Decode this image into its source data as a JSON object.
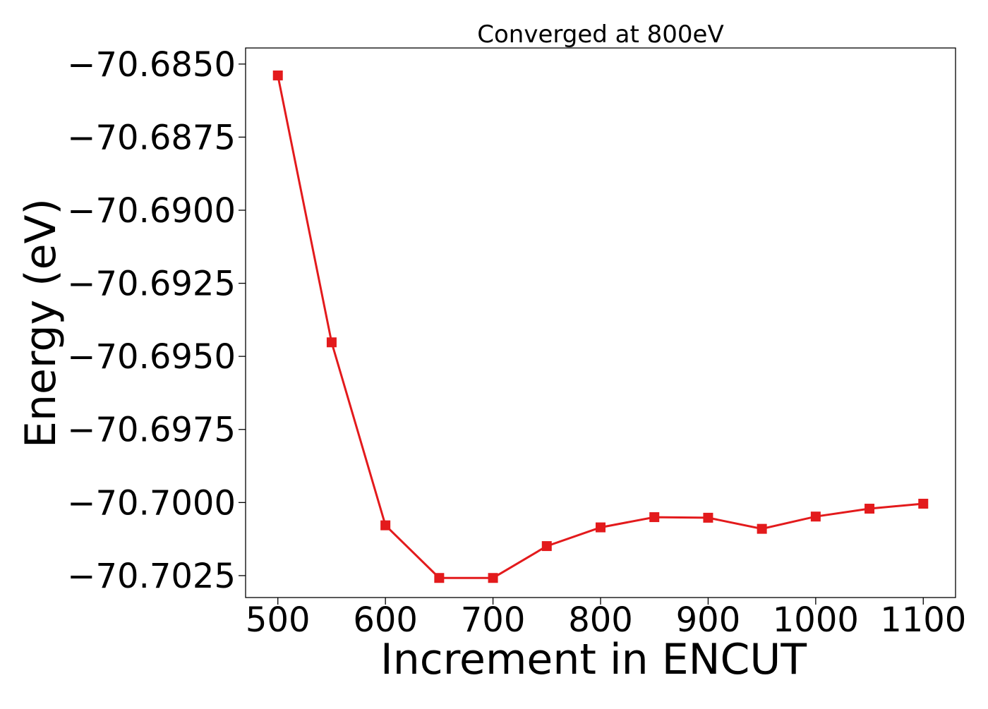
{
  "chart_data": {
    "type": "line",
    "title": "Converged at 800eV",
    "xlabel": "Increment in ENCUT",
    "ylabel": "Energy (eV)",
    "x_ticks": [
      500,
      600,
      700,
      800,
      900,
      1000,
      1100
    ],
    "y_ticks": [
      -70.685,
      -70.6875,
      -70.69,
      -70.6925,
      -70.695,
      -70.6975,
      -70.7,
      -70.7025
    ],
    "y_tick_labels": [
      "−70.6850",
      "−70.6875",
      "−70.6900",
      "−70.6925",
      "−70.6950",
      "−70.6975",
      "−70.7000",
      "−70.7025"
    ],
    "xlim": [
      470,
      1130
    ],
    "ylim": [
      -70.70325,
      -70.68445
    ],
    "grid": false,
    "series": [
      {
        "color": "#e31a1c",
        "marker": "square",
        "x": [
          500,
          550,
          600,
          650,
          700,
          750,
          800,
          850,
          900,
          950,
          1000,
          1050,
          1100
        ],
        "y": [
          -70.68539,
          -70.69452,
          -70.70078,
          -70.70258,
          -70.70258,
          -70.70149,
          -70.70085,
          -70.7005,
          -70.70052,
          -70.7009,
          -70.70048,
          -70.70021,
          -70.70004
        ]
      }
    ]
  }
}
